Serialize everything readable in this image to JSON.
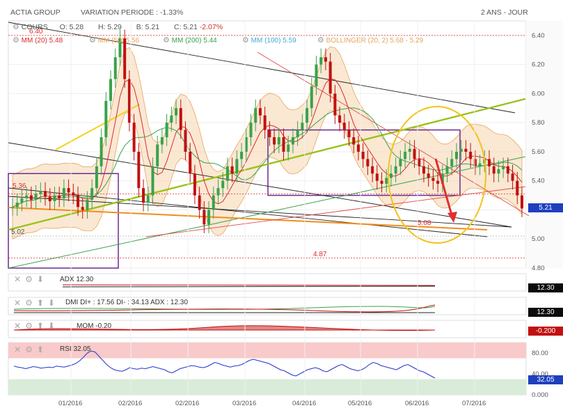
{
  "header": {
    "name": "ACTIA GROUP",
    "variation": "VARIATION PERIODE : -1.33%",
    "period": "2 ANS - JOUR"
  },
  "ohlc": {
    "label": "COURS",
    "o": "O: 5.28",
    "h": "H: 5.29",
    "b": "B: 5.21",
    "c_label": "C: 5.21",
    "c_change": "-2.07%"
  },
  "legend": [
    {
      "label": "MM (20)",
      "value": "5.48",
      "color": "#d92b2b"
    },
    {
      "label": "MM (50)",
      "value": "5.56",
      "color": "#e8a45a"
    },
    {
      "label": "MM (200)",
      "value": "5.44",
      "color": "#3aa24a"
    },
    {
      "label": "MM (100)",
      "value": "5.59",
      "color": "#46a9d6"
    },
    {
      "label": "BOLLINGER (20, 2)",
      "value": "5.68 - 5.29",
      "color": "#e8a45a"
    }
  ],
  "chart_data": {
    "type": "candlestick",
    "ylim": [
      4.8,
      6.5
    ],
    "yticks": [
      "6.40",
      "6.20",
      "6.00",
      "5.80",
      "5.60",
      "5.40",
      "5.20",
      "5.00",
      "4.80"
    ],
    "xticks": [
      "01/2016",
      "02/2016",
      "02/2016",
      "03/2016",
      "04/2016",
      "05/2016",
      "06/2016",
      "07/2016"
    ],
    "last_price": "5.21",
    "annotations": [
      {
        "text": "6.40",
        "y": 6.4
      },
      {
        "text": "5.36",
        "y": 5.31
      },
      {
        "text": "5.02",
        "y": 5.02
      },
      {
        "text": "5.08",
        "y": 5.08
      },
      {
        "text": "4.87",
        "y": 4.87
      }
    ],
    "closes": [
      5.22,
      5.25,
      5.28,
      5.3,
      5.27,
      5.31,
      5.33,
      5.29,
      5.26,
      5.3,
      5.28,
      5.35,
      5.32,
      5.3,
      5.22,
      5.2,
      5.27,
      5.35,
      5.5,
      5.7,
      5.95,
      6.1,
      6.25,
      6.38,
      6.1,
      5.8,
      5.6,
      5.35,
      5.25,
      5.3,
      5.5,
      5.65,
      5.7,
      5.8,
      5.85,
      5.9,
      5.75,
      5.6,
      5.45,
      5.3,
      5.2,
      5.1,
      5.2,
      5.3,
      5.35,
      5.4,
      5.5,
      5.45,
      5.55,
      5.6,
      5.7,
      5.8,
      5.9,
      5.85,
      5.75,
      5.7,
      5.65,
      5.7,
      5.6,
      5.65,
      5.7,
      5.75,
      5.8,
      5.9,
      6.05,
      6.2,
      6.25,
      6.22,
      6.0,
      5.85,
      5.8,
      5.75,
      5.7,
      5.65,
      5.6,
      5.55,
      5.5,
      5.45,
      5.4,
      5.38,
      5.42,
      5.45,
      5.5,
      5.55,
      5.6,
      5.62,
      5.55,
      5.5,
      5.45,
      5.42,
      5.4,
      5.38,
      5.45,
      5.5,
      5.55,
      5.6,
      5.62,
      5.6,
      5.55,
      5.5,
      5.52,
      5.55,
      5.5,
      5.45,
      5.48,
      5.5,
      5.45,
      5.4,
      5.3,
      5.21
    ],
    "adx": {
      "label": "ADX",
      "value": "12.30",
      "tag": "12.30"
    },
    "dmi": {
      "label": "DMI DI+ : 17.56 DI- : 34.13 ADX : 12.30",
      "tag": "12.30"
    },
    "mom": {
      "label": "MOM",
      "value": "-0.20",
      "tag": "-0.200"
    },
    "rsi": {
      "label": "RSI",
      "value": "32.05",
      "tag": "32.05",
      "yticks": [
        "80.00",
        "40.00",
        "0.000"
      ],
      "values": [
        55,
        53,
        52,
        50,
        52,
        54,
        53,
        51,
        52,
        53,
        52,
        55,
        54,
        53,
        55,
        57,
        60,
        65,
        72,
        80,
        84,
        82,
        74,
        66,
        58,
        52,
        48,
        46,
        45,
        48,
        52,
        50,
        49,
        51,
        50,
        52,
        54,
        52,
        50,
        48,
        44,
        42,
        46,
        50,
        52,
        54,
        56,
        55,
        53,
        52,
        54,
        58,
        62,
        60,
        57,
        55,
        53,
        55,
        56,
        58,
        62,
        66,
        68,
        66,
        64,
        62,
        60,
        56,
        52,
        48,
        46,
        42,
        38,
        36,
        40,
        44,
        48,
        50,
        52,
        50,
        46,
        44,
        48,
        52,
        56,
        58,
        54,
        50,
        48,
        46,
        48,
        52,
        58,
        62,
        60,
        56,
        54,
        52,
        50,
        48,
        52,
        56,
        58,
        54,
        50,
        46,
        44,
        40,
        36,
        32
      ]
    }
  }
}
